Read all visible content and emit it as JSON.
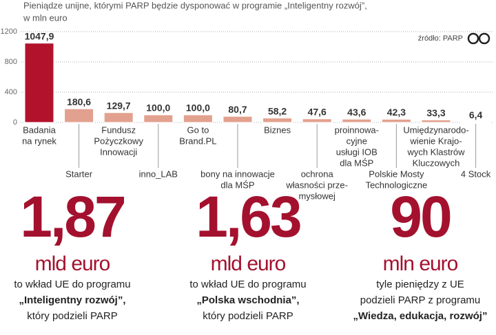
{
  "chart_data": {
    "type": "bar",
    "title": "Pieniądze unijne, którymi PARP będzie dysponować w programie „Inteligentny rozwój”,",
    "subtitle": "w mln euro",
    "source": "źródło: PARP",
    "categories": [
      [
        "Badania",
        "na rynek"
      ],
      [
        "Starter"
      ],
      [
        "Fundusz",
        "Pożyczkowy",
        "Innowacji"
      ],
      [
        "inno_LAB"
      ],
      [
        "Go to",
        "Brand.PL"
      ],
      [
        "bony na innowacje",
        "dla MŚP"
      ],
      [
        "Biznes"
      ],
      [
        "ochrona",
        "własności prze-",
        "mysłowej"
      ],
      [
        "proinnowa-",
        "cyjne",
        "usługi IOB",
        "dla MŚP"
      ],
      [
        "Polskie Mosty",
        "Technologiczne"
      ],
      [
        "Umiędzynarodo-",
        "wienie Krajo-",
        "wych Klastrów",
        "Kluczowych"
      ],
      [
        "4 Stock"
      ]
    ],
    "values": [
      1047.9,
      180.6,
      129.7,
      100.0,
      100.0,
      80.7,
      58.2,
      47.6,
      43.6,
      42.3,
      33.3,
      6.4
    ],
    "value_labels": [
      "1047,9",
      "180,6",
      "129,7",
      "100,0",
      "100,0",
      "80,7",
      "58,2",
      "47,6",
      "43,6",
      "42,3",
      "33,3",
      "6,4"
    ],
    "colors": [
      "#b3122d",
      "#e2a18e",
      "#e2a18e",
      "#e2a18e",
      "#e2a18e",
      "#e2a18e",
      "#e2a18e",
      "#e2a18e",
      "#e2a18e",
      "#e2a18e",
      "#e2a18e",
      "#e2a18e"
    ],
    "ylim": [
      0,
      1200
    ],
    "yticks": [
      0,
      400,
      800,
      1200
    ],
    "grid": true
  },
  "stats": [
    {
      "value": "1,87",
      "unit": "mld euro",
      "lines": [
        "to wkład UE do programu",
        "„Inteligentny rozwój”,",
        "który podzieli PARP"
      ]
    },
    {
      "value": "1,63",
      "unit": "mld euro",
      "lines": [
        "to wkład UE do programu",
        "„Polska wschodnia”,",
        "który podzieli PARP"
      ]
    },
    {
      "value": "90",
      "unit": "mln euro",
      "lines": [
        "tyle pieniędzy z UE",
        "podzieli PARP z programu",
        "„Wiedza, edukacja, rozwój”"
      ]
    }
  ]
}
